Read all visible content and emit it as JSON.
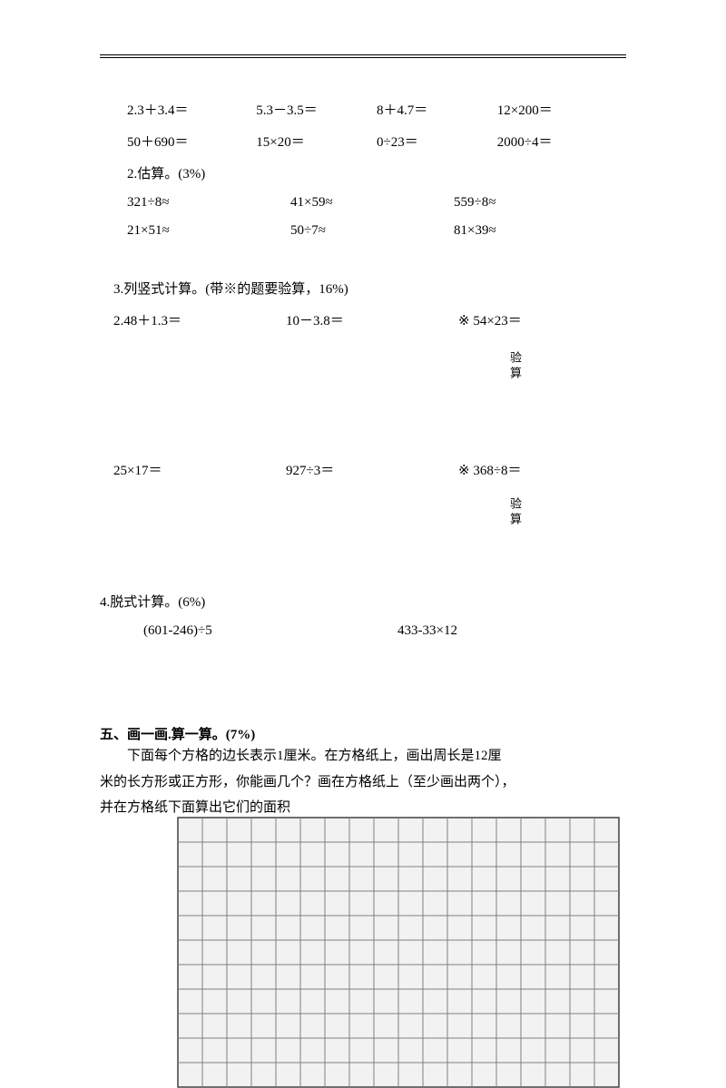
{
  "row1": {
    "a": "2.3＋3.4＝",
    "b": "5.3－3.5＝",
    "c": "8＋4.7＝",
    "d": "12×200＝"
  },
  "row2": {
    "a": "50＋690＝",
    "b": "15×20＝",
    "c": "0÷23＝",
    "d": "2000÷4＝"
  },
  "estimate": {
    "title": "2.估算。(3%)",
    "r1": {
      "a": "321÷8≈",
      "b": "41×59≈",
      "c": "559÷8≈"
    },
    "r2": {
      "a": "21×51≈",
      "b": "50÷7≈",
      "c": "81×39≈"
    }
  },
  "longcalc": {
    "title": "3.列竖式计算。(带※的题要验算，16%)",
    "r1": {
      "a": "2.48＋1.3＝",
      "b": "10－3.8＝",
      "c": "※ 54×23＝"
    },
    "r2": {
      "a": "25×17＝",
      "b": "927÷3＝",
      "c": "※ 368÷8＝"
    },
    "verify": "验算"
  },
  "step": {
    "title": "4.脱式计算。(6%)",
    "a": "(601-246)÷5",
    "b": "433-33×12"
  },
  "section5": {
    "heading": "五、画一画.算一算。(7%)",
    "line1": "下面每个方格的边长表示1厘米。在方格纸上，画出周长是12厘",
    "line2": "米的长方形或正方形，你能画几个？画在方格纸上（至少画出两个），",
    "line3": "并在方格纸下面算出它们的面积"
  },
  "grid": {
    "cols": 18,
    "rows": 11,
    "cell": 27,
    "stroke": "#808080",
    "fill": "#f2f2f2",
    "outer": "#404040"
  }
}
